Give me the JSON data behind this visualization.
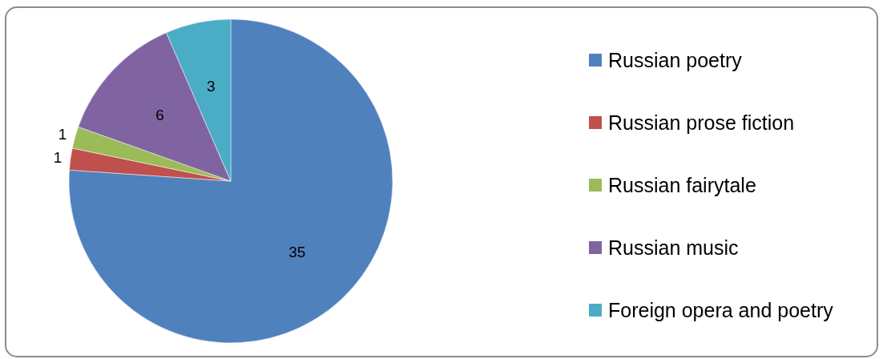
{
  "chart_data": {
    "type": "pie",
    "categories": [
      "Russian poetry",
      "Russian prose fiction",
      "Russian fairytale",
      "Russian music",
      "Foreign opera and poetry"
    ],
    "values": [
      35,
      1,
      1,
      6,
      3
    ],
    "colors": [
      "#4f81bd",
      "#c0504d",
      "#9bbb59",
      "#8064a2",
      "#4bacc6"
    ],
    "data_labels": true,
    "legend": "right"
  }
}
